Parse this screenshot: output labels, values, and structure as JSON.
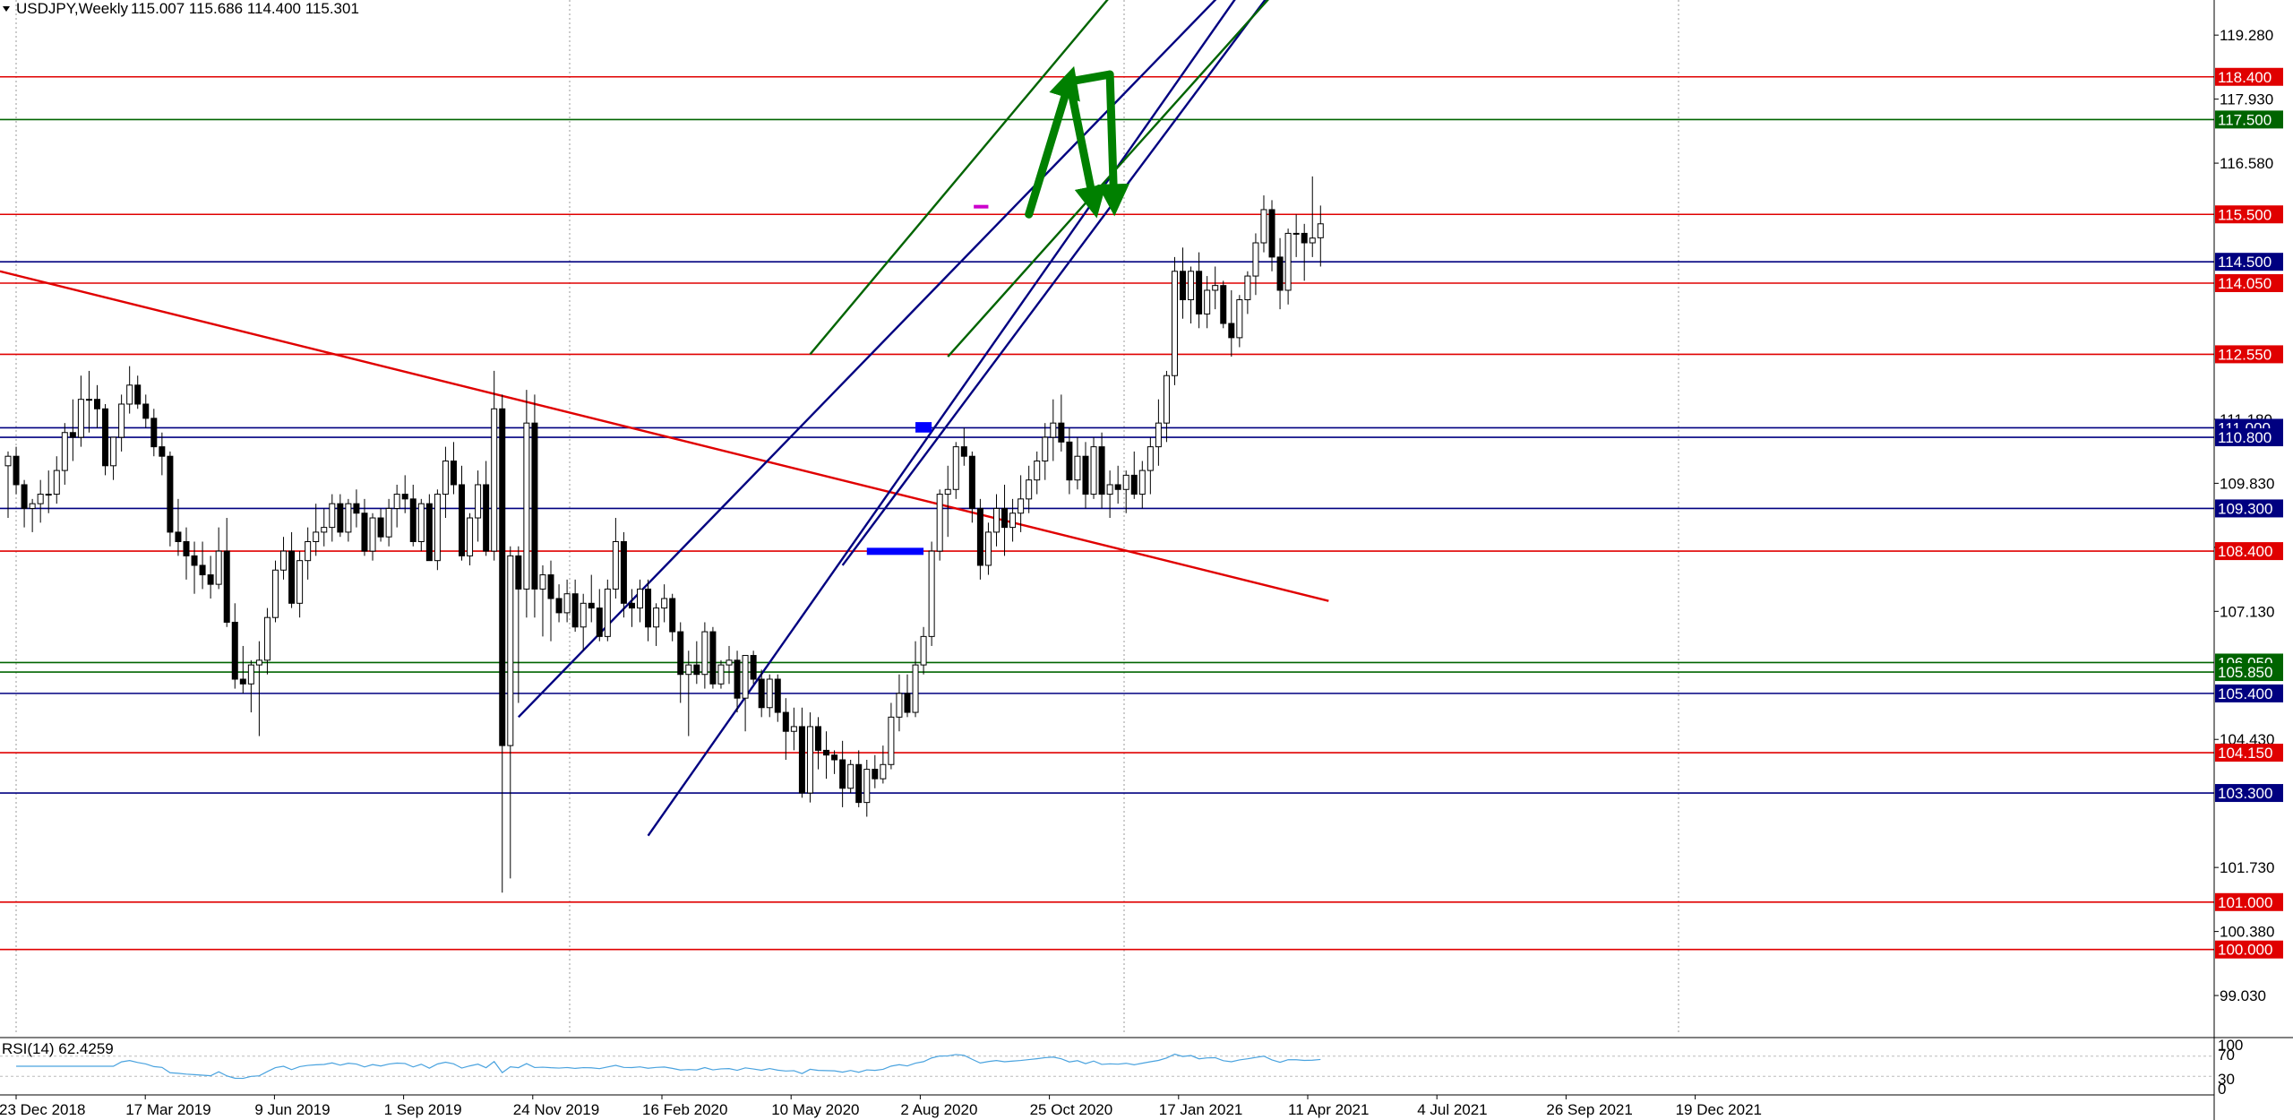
{
  "header": {
    "symbol_label": "USDJPY,Weekly",
    "ohlc": "115.007 115.686 114.400 115.301"
  },
  "chart_data": {
    "type": "candlestick",
    "symbol": "USDJPY",
    "timeframe": "Weekly",
    "ylim": [
      98.2,
      120.02
    ],
    "grid": "vertical dotted",
    "x_ticks": [
      "23 Dec 2018",
      "17 Mar 2019",
      "9 Jun 2019",
      "1 Sep 2019",
      "24 Nov 2019",
      "16 Feb 2020",
      "10 May 2020",
      "2 Aug 2020",
      "25 Oct 2020",
      "17 Jan 2021",
      "11 Apr 2021",
      "4 Jul 2021",
      "26 Sep 2021",
      "19 Dec 2021"
    ],
    "y_ticks": [
      {
        "value": 119.28,
        "label": "119.280"
      },
      {
        "value": 117.93,
        "label": "117.930"
      },
      {
        "value": 116.58,
        "label": "116.580"
      },
      {
        "value": 111.18,
        "label": "111.180"
      },
      {
        "value": 109.83,
        "label": "109.830"
      },
      {
        "value": 108.48,
        "label": "108.480"
      },
      {
        "value": 107.13,
        "label": "107.130"
      },
      {
        "value": 104.43,
        "label": "104.430"
      },
      {
        "value": 101.73,
        "label": "101.730"
      },
      {
        "value": 100.38,
        "label": "100.380"
      },
      {
        "value": 99.03,
        "label": "99.030"
      }
    ],
    "levels": [
      {
        "value": 118.4,
        "label": "118.400",
        "color": "#e00000"
      },
      {
        "value": 117.5,
        "label": "117.500",
        "color": "#006400"
      },
      {
        "value": 115.5,
        "label": "115.500",
        "color": "#e00000"
      },
      {
        "value": 114.5,
        "label": "114.500",
        "color": "#000080"
      },
      {
        "value": 114.05,
        "label": "114.050",
        "color": "#e00000"
      },
      {
        "value": 112.55,
        "label": "112.550",
        "color": "#e00000"
      },
      {
        "value": 111.0,
        "label": "111.000",
        "color": "#000080"
      },
      {
        "value": 110.8,
        "label": "110.800",
        "color": "#000080"
      },
      {
        "value": 109.3,
        "label": "109.300",
        "color": "#000080"
      },
      {
        "value": 108.4,
        "label": "108.400",
        "color": "#e00000"
      },
      {
        "value": 106.05,
        "label": "106.050",
        "color": "#006400"
      },
      {
        "value": 105.85,
        "label": "105.850",
        "color": "#006400"
      },
      {
        "value": 105.4,
        "label": "105.400",
        "color": "#000080"
      },
      {
        "value": 104.15,
        "label": "104.150",
        "color": "#e00000"
      },
      {
        "value": 103.3,
        "label": "103.300",
        "color": "#000080"
      },
      {
        "value": 101.0,
        "label": "101.000",
        "color": "#e00000"
      },
      {
        "value": 100.0,
        "label": "100.000",
        "color": "#e00000"
      }
    ],
    "trendlines": [
      {
        "color": "#e00000",
        "from": [
          -1,
          114.3
        ],
        "to": [
          163,
          107.35
        ]
      },
      {
        "color": "#000080",
        "from": [
          63,
          104.9
        ],
        "to": [
          154,
          120.9
        ]
      },
      {
        "color": "#000080",
        "from": [
          79,
          102.4
        ],
        "to": [
          155,
          120.9
        ]
      },
      {
        "color": "#000080",
        "from": [
          103,
          108.1
        ],
        "to": [
          159,
          120.9
        ]
      },
      {
        "color": "#006400",
        "from": [
          99,
          112.55
        ],
        "to": [
          140,
          120.9
        ]
      },
      {
        "color": "#006400",
        "from": [
          116,
          112.5
        ],
        "to": [
          158,
          120.5
        ]
      }
    ],
    "zones": [
      {
        "color": "#0000ff",
        "x0": 106,
        "x1": 113,
        "y0": 108.32,
        "y1": 108.47
      },
      {
        "color": "#0000ff",
        "x0": 112,
        "x1": 114,
        "y0": 110.9,
        "y1": 111.12
      },
      {
        "color": "#cc00cc",
        "x0": 119.2,
        "x1": 121,
        "y0": 115.66,
        "y1": 115.7
      }
    ],
    "projection": {
      "color": "#008000",
      "points": [
        [
          126,
          115.5
        ],
        [
          131,
          118.3
        ],
        [
          134,
          115.75
        ],
        [
          131,
          118.3
        ],
        [
          136,
          118.45
        ],
        [
          136.5,
          115.8
        ]
      ]
    },
    "candles": [
      [
        110.2,
        110.5,
        109.1,
        110.4
      ],
      [
        110.4,
        110.6,
        109.6,
        109.8
      ],
      [
        109.8,
        109.9,
        108.9,
        109.3
      ],
      [
        109.3,
        109.5,
        108.8,
        109.4
      ],
      [
        109.4,
        109.9,
        109.0,
        109.6
      ],
      [
        109.6,
        110.1,
        109.2,
        109.6
      ],
      [
        109.6,
        110.4,
        109.4,
        110.1
      ],
      [
        110.1,
        111.1,
        109.8,
        110.9
      ],
      [
        110.9,
        111.6,
        110.3,
        110.8
      ],
      [
        110.8,
        112.1,
        110.6,
        111.6
      ],
      [
        111.6,
        112.2,
        110.9,
        111.6
      ],
      [
        111.6,
        111.9,
        111.0,
        111.4
      ],
      [
        111.4,
        111.5,
        110.0,
        110.2
      ],
      [
        110.2,
        110.8,
        109.9,
        110.8
      ],
      [
        110.8,
        111.7,
        110.5,
        111.5
      ],
      [
        111.5,
        112.3,
        111.3,
        111.9
      ],
      [
        111.9,
        112.1,
        111.4,
        111.5
      ],
      [
        111.5,
        111.7,
        111.0,
        111.2
      ],
      [
        111.2,
        111.4,
        110.4,
        110.6
      ],
      [
        110.6,
        110.9,
        110.0,
        110.4
      ],
      [
        110.4,
        110.5,
        108.5,
        108.8
      ],
      [
        108.8,
        109.5,
        108.3,
        108.6
      ],
      [
        108.6,
        108.9,
        107.8,
        108.3
      ],
      [
        108.3,
        108.6,
        107.5,
        108.1
      ],
      [
        108.1,
        108.6,
        107.6,
        107.9
      ],
      [
        107.9,
        108.3,
        107.4,
        107.7
      ],
      [
        107.7,
        108.9,
        107.6,
        108.4
      ],
      [
        108.4,
        109.1,
        106.8,
        106.9
      ],
      [
        106.9,
        107.3,
        105.5,
        105.7
      ],
      [
        105.7,
        106.4,
        105.4,
        105.6
      ],
      [
        105.6,
        106.1,
        105.0,
        106.0
      ],
      [
        106.0,
        106.5,
        104.5,
        106.1
      ],
      [
        106.1,
        107.2,
        105.8,
        107.0
      ],
      [
        107.0,
        108.2,
        106.9,
        108.0
      ],
      [
        108.0,
        108.7,
        107.8,
        108.4
      ],
      [
        108.4,
        108.8,
        107.2,
        107.3
      ],
      [
        107.3,
        108.4,
        107.0,
        108.2
      ],
      [
        108.2,
        108.9,
        107.8,
        108.6
      ],
      [
        108.6,
        109.4,
        108.3,
        108.8
      ],
      [
        108.8,
        109.3,
        108.5,
        108.9
      ],
      [
        108.9,
        109.6,
        108.6,
        109.4
      ],
      [
        109.4,
        109.6,
        108.7,
        108.8
      ],
      [
        108.8,
        109.5,
        108.6,
        109.4
      ],
      [
        109.4,
        109.7,
        108.9,
        109.2
      ],
      [
        109.2,
        109.5,
        108.3,
        108.4
      ],
      [
        108.4,
        109.2,
        108.2,
        109.1
      ],
      [
        109.1,
        109.3,
        108.6,
        108.7
      ],
      [
        108.7,
        109.5,
        108.5,
        109.3
      ],
      [
        109.3,
        109.8,
        108.9,
        109.6
      ],
      [
        109.6,
        110.0,
        109.2,
        109.5
      ],
      [
        109.5,
        109.8,
        108.5,
        108.6
      ],
      [
        108.6,
        109.5,
        108.4,
        109.4
      ],
      [
        109.4,
        109.6,
        108.2,
        108.2
      ],
      [
        108.2,
        109.7,
        108.0,
        109.6
      ],
      [
        109.6,
        110.6,
        109.1,
        110.3
      ],
      [
        110.3,
        110.7,
        109.6,
        109.8
      ],
      [
        109.8,
        110.2,
        108.2,
        108.3
      ],
      [
        108.3,
        109.2,
        108.1,
        109.1
      ],
      [
        109.1,
        110.1,
        108.6,
        109.8
      ],
      [
        109.8,
        110.3,
        108.3,
        108.4
      ],
      [
        108.4,
        112.2,
        108.2,
        111.4
      ],
      [
        111.4,
        111.7,
        101.2,
        104.3
      ],
      [
        104.3,
        108.5,
        101.5,
        108.3
      ],
      [
        108.3,
        108.5,
        105.2,
        107.6
      ],
      [
        107.6,
        111.8,
        107.0,
        111.1
      ],
      [
        111.1,
        111.7,
        107.0,
        107.6
      ],
      [
        107.6,
        108.1,
        106.6,
        107.9
      ],
      [
        107.9,
        108.2,
        106.5,
        107.4
      ],
      [
        107.4,
        107.7,
        106.9,
        107.1
      ],
      [
        107.1,
        107.8,
        106.9,
        107.5
      ],
      [
        107.5,
        107.8,
        106.7,
        106.8
      ],
      [
        106.8,
        107.5,
        106.3,
        107.3
      ],
      [
        107.3,
        107.9,
        106.9,
        107.2
      ],
      [
        107.2,
        107.6,
        106.5,
        106.6
      ],
      [
        106.6,
        107.8,
        106.5,
        107.6
      ],
      [
        107.6,
        109.1,
        107.4,
        108.6
      ],
      [
        108.6,
        108.8,
        107.0,
        107.3
      ],
      [
        107.3,
        107.6,
        106.8,
        107.2
      ],
      [
        107.2,
        107.8,
        106.9,
        107.6
      ],
      [
        107.6,
        107.8,
        106.5,
        106.8
      ],
      [
        106.8,
        107.3,
        106.4,
        107.2
      ],
      [
        107.2,
        107.7,
        106.9,
        107.4
      ],
      [
        107.4,
        107.5,
        106.5,
        106.7
      ],
      [
        106.7,
        106.9,
        105.2,
        105.8
      ],
      [
        105.8,
        106.3,
        104.5,
        106.0
      ],
      [
        106.0,
        106.5,
        105.6,
        105.8
      ],
      [
        105.8,
        106.9,
        105.5,
        106.7
      ],
      [
        106.7,
        106.8,
        105.5,
        105.6
      ],
      [
        105.6,
        106.1,
        105.5,
        106.0
      ],
      [
        106.0,
        106.4,
        105.6,
        106.1
      ],
      [
        106.1,
        106.3,
        105.0,
        105.3
      ],
      [
        105.3,
        106.2,
        104.6,
        106.2
      ],
      [
        106.2,
        106.3,
        105.6,
        105.7
      ],
      [
        105.7,
        105.9,
        104.9,
        105.1
      ],
      [
        105.1,
        105.8,
        104.9,
        105.7
      ],
      [
        105.7,
        105.8,
        104.8,
        105.0
      ],
      [
        105.0,
        105.3,
        104.0,
        104.6
      ],
      [
        104.6,
        105.1,
        104.2,
        104.7
      ],
      [
        104.7,
        105.1,
        103.2,
        103.3
      ],
      [
        103.3,
        105.0,
        103.1,
        104.7
      ],
      [
        104.7,
        104.9,
        103.8,
        104.2
      ],
      [
        104.2,
        104.6,
        103.6,
        104.1
      ],
      [
        104.1,
        104.2,
        103.7,
        104.0
      ],
      [
        104.0,
        104.4,
        103.0,
        103.4
      ],
      [
        103.4,
        104.0,
        103.3,
        103.9
      ],
      [
        103.9,
        104.2,
        103.0,
        103.1
      ],
      [
        103.1,
        104.0,
        102.8,
        103.8
      ],
      [
        103.8,
        104.1,
        103.4,
        103.6
      ],
      [
        103.6,
        104.3,
        103.5,
        103.9
      ],
      [
        103.9,
        105.2,
        103.8,
        104.9
      ],
      [
        104.9,
        105.8,
        104.6,
        105.4
      ],
      [
        105.4,
        105.8,
        104.9,
        105.0
      ],
      [
        105.0,
        106.5,
        104.9,
        106.0
      ],
      [
        106.0,
        106.8,
        105.8,
        106.6
      ],
      [
        106.6,
        108.6,
        106.4,
        108.4
      ],
      [
        108.4,
        109.7,
        108.2,
        109.6
      ],
      [
        109.6,
        110.2,
        108.7,
        109.7
      ],
      [
        109.7,
        110.7,
        109.5,
        110.6
      ],
      [
        110.6,
        111.0,
        110.2,
        110.4
      ],
      [
        110.4,
        110.5,
        109.0,
        109.3
      ],
      [
        109.3,
        109.5,
        107.8,
        108.1
      ],
      [
        108.1,
        109.0,
        107.9,
        108.8
      ],
      [
        108.8,
        109.6,
        108.5,
        109.3
      ],
      [
        109.3,
        109.8,
        108.3,
        108.9
      ],
      [
        108.9,
        109.5,
        108.6,
        109.2
      ],
      [
        109.2,
        110.0,
        108.8,
        109.5
      ],
      [
        109.5,
        110.2,
        109.2,
        109.9
      ],
      [
        109.9,
        110.5,
        109.6,
        110.3
      ],
      [
        110.3,
        111.1,
        109.9,
        110.8
      ],
      [
        110.8,
        111.6,
        110.3,
        111.1
      ],
      [
        111.1,
        111.7,
        110.5,
        110.7
      ],
      [
        110.7,
        111.0,
        109.6,
        109.9
      ],
      [
        109.9,
        110.8,
        109.7,
        110.4
      ],
      [
        110.4,
        110.7,
        109.3,
        109.6
      ],
      [
        109.6,
        110.8,
        109.5,
        110.6
      ],
      [
        110.6,
        110.9,
        109.3,
        109.6
      ],
      [
        109.6,
        110.1,
        109.1,
        109.8
      ],
      [
        109.8,
        110.2,
        109.4,
        109.7
      ],
      [
        109.7,
        110.1,
        109.2,
        110.0
      ],
      [
        110.0,
        110.5,
        109.5,
        109.6
      ],
      [
        109.6,
        110.3,
        109.3,
        110.1
      ],
      [
        110.1,
        110.8,
        109.6,
        110.6
      ],
      [
        110.6,
        111.6,
        110.2,
        111.1
      ],
      [
        111.1,
        112.2,
        110.7,
        112.1
      ],
      [
        112.1,
        114.6,
        111.9,
        114.3
      ],
      [
        114.3,
        114.8,
        113.3,
        113.7
      ],
      [
        113.7,
        114.4,
        113.2,
        114.3
      ],
      [
        114.3,
        114.7,
        113.1,
        113.4
      ],
      [
        113.4,
        114.2,
        113.1,
        113.9
      ],
      [
        113.9,
        114.4,
        113.5,
        114.0
      ],
      [
        114.0,
        114.1,
        113.1,
        113.2
      ],
      [
        113.2,
        113.9,
        112.5,
        112.9
      ],
      [
        112.9,
        113.8,
        112.7,
        113.7
      ],
      [
        113.7,
        114.3,
        113.4,
        114.2
      ],
      [
        114.2,
        115.1,
        113.8,
        114.9
      ],
      [
        114.9,
        115.9,
        114.7,
        115.6
      ],
      [
        115.6,
        115.8,
        114.3,
        114.6
      ],
      [
        114.6,
        115.0,
        113.5,
        113.9
      ],
      [
        113.9,
        115.2,
        113.6,
        115.1
      ],
      [
        115.1,
        115.5,
        114.6,
        115.1
      ],
      [
        115.1,
        115.3,
        114.1,
        114.9
      ],
      [
        114.9,
        116.3,
        114.6,
        115.0
      ],
      [
        115.007,
        115.686,
        114.4,
        115.301
      ]
    ],
    "rsi": {
      "label": "RSI(14) 62.4259",
      "value": 62.4259,
      "ticks": [
        "100",
        "70",
        "30",
        "0"
      ]
    }
  }
}
